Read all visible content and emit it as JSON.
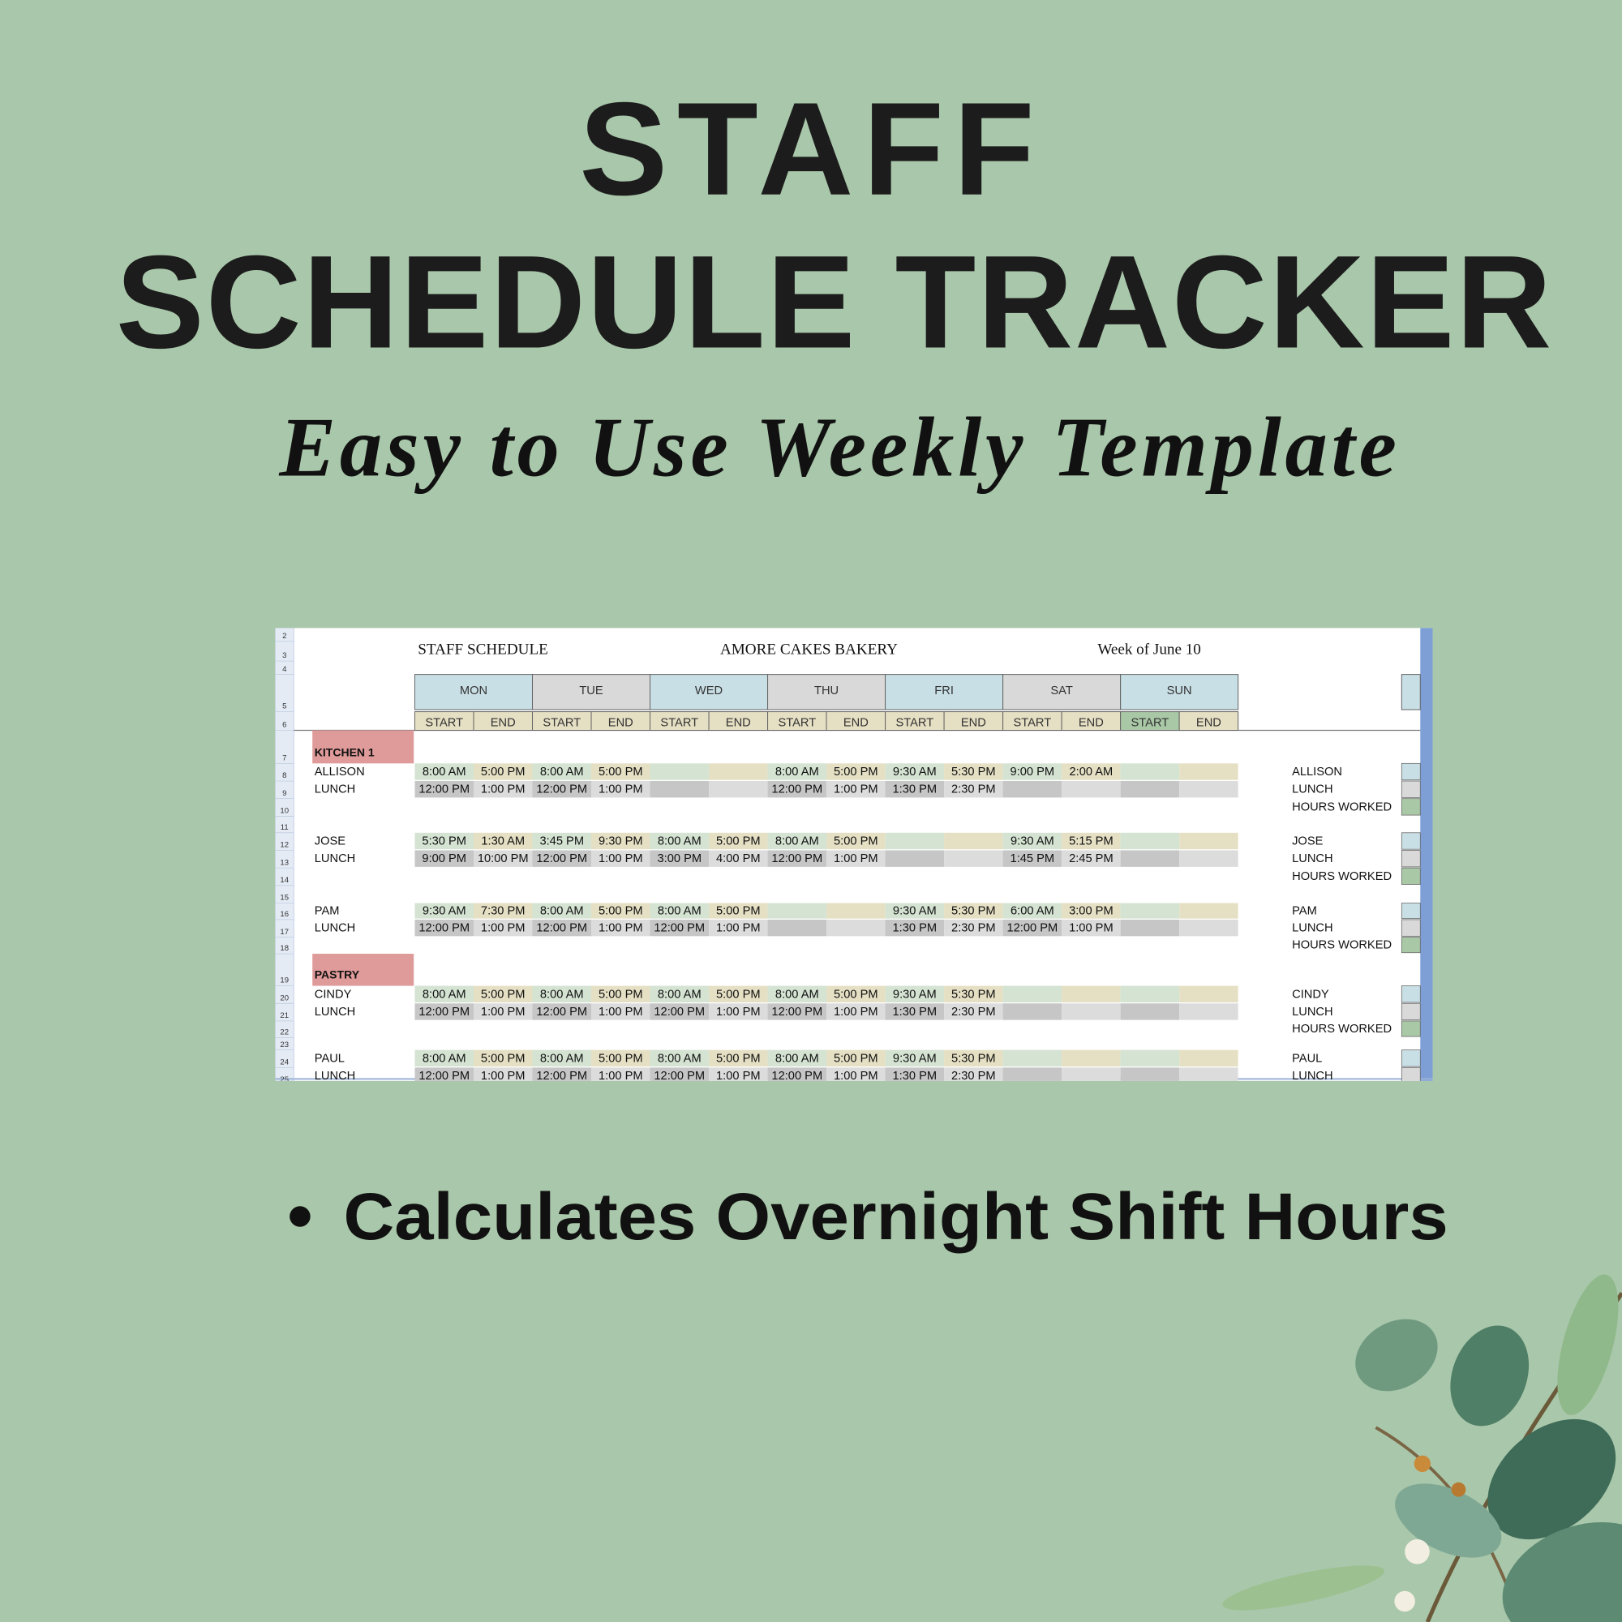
{
  "header": {
    "title": "STAFF",
    "title_line2": "SCHEDULE TRACKER",
    "subtitle": "Easy to Use Weekly Template"
  },
  "sheet": {
    "title": "STAFF SCHEDULE",
    "company": "AMORE CAKES BAKERY",
    "week": "Week of June 10",
    "row_numbers": [
      2,
      3,
      4,
      5,
      6,
      7,
      8,
      9,
      10,
      11,
      12,
      13,
      14,
      15,
      16,
      17,
      18,
      19,
      20,
      21,
      22,
      23,
      24,
      25
    ],
    "days": [
      "MON",
      "TUE",
      "WED",
      "THU",
      "FRI",
      "SAT",
      "SUN"
    ],
    "start_label": "START",
    "end_label": "END",
    "lunch_label": "LUNCH",
    "hours_label": "HOURS WORKED",
    "sections": [
      {
        "name": "KITCHEN 1",
        "employees": [
          {
            "name": "ALLISON",
            "shifts": [
              [
                "8:00 AM",
                "5:00 PM"
              ],
              [
                "8:00 AM",
                "5:00 PM"
              ],
              null,
              [
                "8:00 AM",
                "5:00 PM"
              ],
              [
                "9:30 AM",
                "5:30 PM"
              ],
              [
                "9:00 PM",
                "2:00 AM"
              ],
              null
            ],
            "lunch": [
              [
                "12:00 PM",
                "1:00 PM"
              ],
              [
                "12:00 PM",
                "1:00 PM"
              ],
              null,
              [
                "12:00 PM",
                "1:00 PM"
              ],
              [
                "1:30 PM",
                "2:30 PM"
              ],
              null,
              null
            ]
          },
          {
            "name": "JOSE",
            "shifts": [
              [
                "5:30 PM",
                "1:30 AM"
              ],
              [
                "3:45 PM",
                "9:30 PM"
              ],
              [
                "8:00 AM",
                "5:00 PM"
              ],
              [
                "8:00 AM",
                "5:00 PM"
              ],
              null,
              [
                "9:30 AM",
                "5:15 PM"
              ],
              null
            ],
            "lunch": [
              [
                "9:00 PM",
                "10:00 PM"
              ],
              [
                "12:00 PM",
                "1:00 PM"
              ],
              [
                "3:00 PM",
                "4:00 PM"
              ],
              [
                "12:00 PM",
                "1:00 PM"
              ],
              null,
              [
                "1:45 PM",
                "2:45 PM"
              ],
              null
            ]
          },
          {
            "name": "PAM",
            "shifts": [
              [
                "9:30 AM",
                "7:30 PM"
              ],
              [
                "8:00 AM",
                "5:00 PM"
              ],
              [
                "8:00 AM",
                "5:00 PM"
              ],
              null,
              [
                "9:30 AM",
                "5:30 PM"
              ],
              [
                "6:00 AM",
                "3:00 PM"
              ],
              null
            ],
            "lunch": [
              [
                "12:00 PM",
                "1:00 PM"
              ],
              [
                "12:00 PM",
                "1:00 PM"
              ],
              [
                "12:00 PM",
                "1:00 PM"
              ],
              null,
              [
                "1:30 PM",
                "2:30 PM"
              ],
              [
                "12:00 PM",
                "1:00 PM"
              ],
              null
            ]
          }
        ]
      },
      {
        "name": "PASTRY",
        "employees": [
          {
            "name": "CINDY",
            "shifts": [
              [
                "8:00 AM",
                "5:00 PM"
              ],
              [
                "8:00 AM",
                "5:00 PM"
              ],
              [
                "8:00 AM",
                "5:00 PM"
              ],
              [
                "8:00 AM",
                "5:00 PM"
              ],
              [
                "9:30 AM",
                "5:30 PM"
              ],
              null,
              null
            ],
            "lunch": [
              [
                "12:00 PM",
                "1:00 PM"
              ],
              [
                "12:00 PM",
                "1:00 PM"
              ],
              [
                "12:00 PM",
                "1:00 PM"
              ],
              [
                "12:00 PM",
                "1:00 PM"
              ],
              [
                "1:30 PM",
                "2:30 PM"
              ],
              null,
              null
            ]
          },
          {
            "name": "PAUL",
            "shifts": [
              [
                "8:00 AM",
                "5:00 PM"
              ],
              [
                "8:00 AM",
                "5:00 PM"
              ],
              [
                "8:00 AM",
                "5:00 PM"
              ],
              [
                "8:00 AM",
                "5:00 PM"
              ],
              [
                "9:30 AM",
                "5:30 PM"
              ],
              null,
              null
            ],
            "lunch": [
              [
                "12:00 PM",
                "1:00 PM"
              ],
              [
                "12:00 PM",
                "1:00 PM"
              ],
              [
                "12:00 PM",
                "1:00 PM"
              ],
              [
                "12:00 PM",
                "1:00 PM"
              ],
              [
                "1:30 PM",
                "2:30 PM"
              ],
              null,
              null
            ]
          }
        ]
      }
    ]
  },
  "features": [
    "Calculates Overnight Shift Hours"
  ]
}
